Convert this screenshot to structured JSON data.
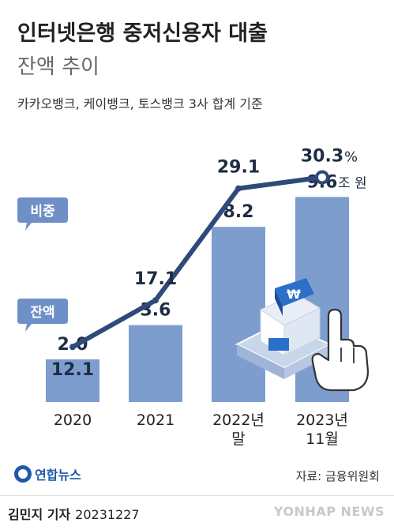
{
  "title": "인터넷은행 중저신용자 대출",
  "subtitle": "잔액 추이",
  "note": "카카오뱅크, 케이뱅크, 토스뱅크 3사 합계 기준",
  "label_ratio": "비중",
  "label_balance": "잔액",
  "source": "자료: 금융위원회",
  "byline": "김민지 기자",
  "date": "20231227",
  "logo_text": "연합뉴스",
  "watermark": "YONHAP NEWS",
  "colors": {
    "bar": "#7e9dcf",
    "line": "#2e4a7a",
    "callout": "#6f8fc7",
    "text_dark": "#1f2d45"
  },
  "icon_names": [
    "bank-building-icon",
    "pointing-hand-icon"
  ],
  "chart_data": {
    "type": "bar",
    "categories": [
      "2020",
      "2021",
      "2022년 말",
      "2023년 11월"
    ],
    "category_lines": [
      [
        "2020"
      ],
      [
        "2021"
      ],
      [
        "2022년",
        "말"
      ],
      [
        "2023년",
        "11월"
      ]
    ],
    "series": [
      {
        "name": "잔액",
        "values": [
          2.0,
          3.6,
          8.2,
          9.6
        ],
        "value_labels": [
          "2.0",
          "3.6",
          "8.2",
          "9.6"
        ],
        "unit": "조 원"
      },
      {
        "name": "비중",
        "values": [
          12.1,
          17.1,
          29.1,
          30.3
        ],
        "value_labels": [
          "12.1",
          "17.1",
          "29.1",
          "30.3"
        ],
        "unit": "%"
      }
    ],
    "balance_ylim": [
      0,
      10.5
    ],
    "ratio_ylim": [
      0,
      40
    ]
  }
}
